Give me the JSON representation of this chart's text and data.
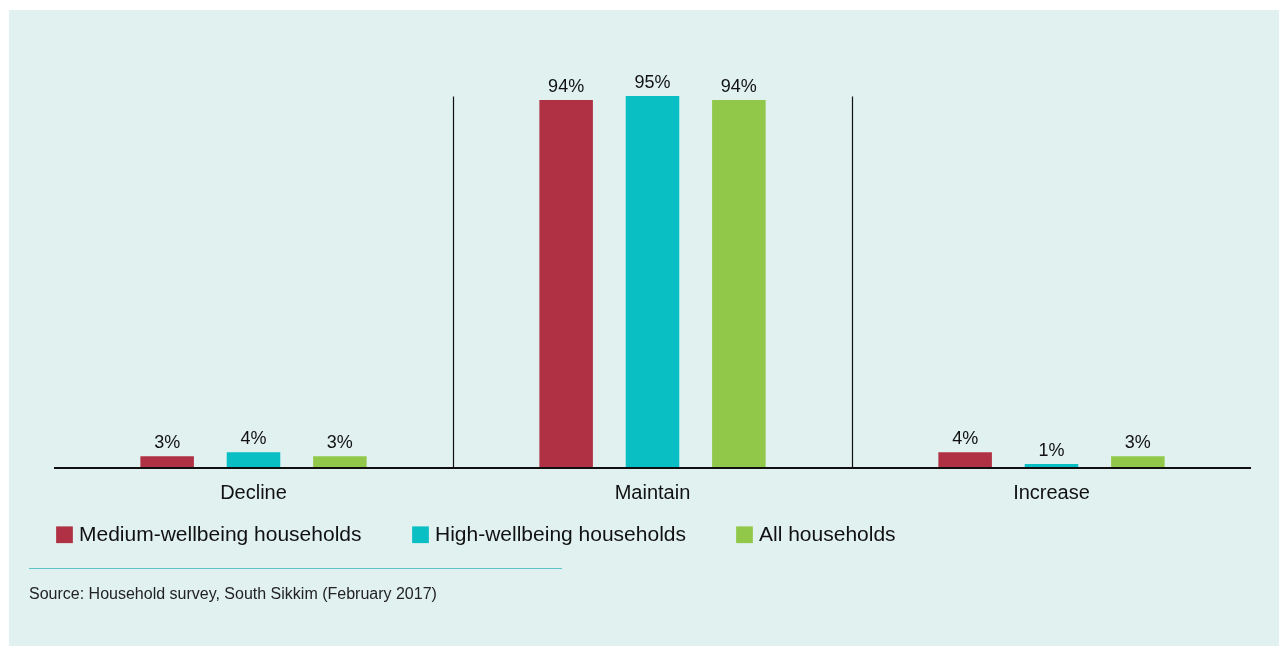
{
  "chart_data": {
    "type": "bar",
    "categories": [
      "Decline",
      "Maintain",
      "Increase"
    ],
    "series": [
      {
        "name": "Medium-wellbeing households",
        "color": "#b03143",
        "values": [
          3,
          94,
          4
        ],
        "value_labels": [
          "3%",
          "94%",
          "4%"
        ]
      },
      {
        "name": "High-wellbeing households",
        "color": "#0abfc3",
        "values": [
          4,
          95,
          1
        ],
        "value_labels": [
          "4%",
          "95%",
          "1%"
        ]
      },
      {
        "name": "All households",
        "color": "#92c84a",
        "values": [
          3,
          94,
          3
        ],
        "value_labels": [
          "3%",
          "94%",
          "3%"
        ]
      }
    ],
    "grid": "x",
    "legend": "bottom",
    "annotations": [
      "Source: Household survey, South Sikkim (February 2017)"
    ]
  }
}
